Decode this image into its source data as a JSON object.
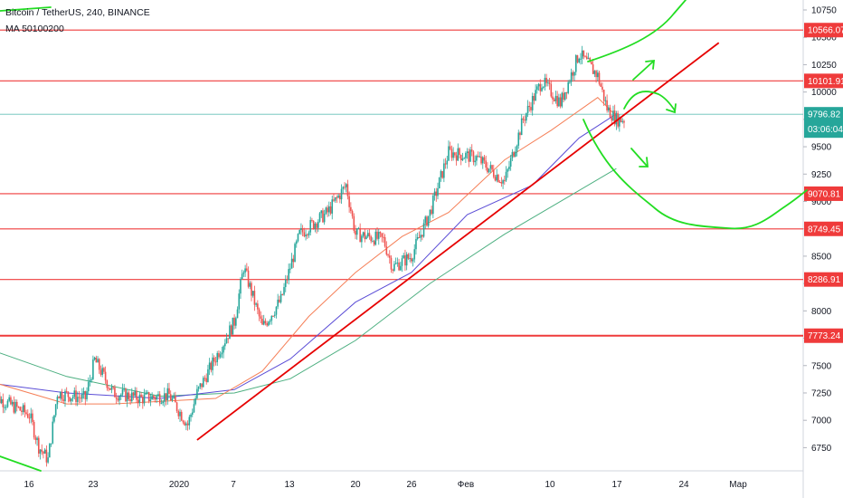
{
  "header": {
    "symbol": "Bitcoin / TetherUS, 240, BINANCE",
    "indicator": "MA 50100200"
  },
  "colors": {
    "up": "#26a69a",
    "down": "#ef5350",
    "ma50": "#f57f57",
    "ma100": "#5b4dd6",
    "ma200": "#4caf80",
    "level": "#ef3b3b",
    "trendline": "#e60000",
    "drawing": "#22dd22",
    "current": "#26a69a"
  },
  "x_axis_labels": [
    "16",
    "23",
    "2020",
    "7",
    "13",
    "20",
    "26",
    "Фев",
    "10",
    "17",
    "24",
    "Мар"
  ],
  "chart_data": {
    "type": "candlestick",
    "symbol": "BTCUSDT",
    "timeframe": "240",
    "exchange": "BINANCE",
    "y_ticks": [
      6750,
      7000,
      7250,
      7500,
      7750,
      8000,
      8250,
      8500,
      8750,
      9000,
      9250,
      9500,
      9750,
      10000,
      10250,
      10500,
      10750
    ],
    "ylim": [
      6650,
      10900
    ],
    "horizontal_levels": [
      10566.07,
      10101.91,
      9070.81,
      8749.45,
      8286.91,
      7773.24
    ],
    "current_price": 9796.82,
    "countdown": "03:06:04",
    "trendline": {
      "from": [
        "2020-01-03",
        6820
      ],
      "to": [
        "2020-02-28",
        10450
      ]
    },
    "anchor_closes": [
      [
        "2019-12-12",
        7230
      ],
      [
        "2019-12-16",
        7050
      ],
      [
        "2019-12-17",
        6760
      ],
      [
        "2019-12-18",
        6640
      ],
      [
        "2019-12-19",
        7250
      ],
      [
        "2019-12-22",
        7200
      ],
      [
        "2019-12-23",
        7550
      ],
      [
        "2019-12-25",
        7250
      ],
      [
        "2019-12-28",
        7200
      ],
      [
        "2019-12-31",
        7230
      ],
      [
        "2020-01-02",
        6960
      ],
      [
        "2020-01-03",
        7250
      ],
      [
        "2020-01-07",
        7900
      ],
      [
        "2020-01-08",
        8400
      ],
      [
        "2020-01-10",
        7850
      ],
      [
        "2020-01-12",
        8100
      ],
      [
        "2020-01-14",
        8700
      ],
      [
        "2020-01-17",
        8900
      ],
      [
        "2020-01-19",
        9150
      ],
      [
        "2020-01-20",
        8700
      ],
      [
        "2020-01-23",
        8650
      ],
      [
        "2020-01-24",
        8400
      ],
      [
        "2020-01-26",
        8500
      ],
      [
        "2020-01-28",
        8900
      ],
      [
        "2020-01-30",
        9450
      ],
      [
        "2020-02-02",
        9400
      ],
      [
        "2020-02-05",
        9180
      ],
      [
        "2020-02-07",
        9750
      ],
      [
        "2020-02-09",
        10100
      ],
      [
        "2020-02-11",
        9900
      ],
      [
        "2020-02-13",
        10350
      ],
      [
        "2020-02-15",
        10150
      ],
      [
        "2020-02-16",
        9850
      ],
      [
        "2020-02-17",
        9750
      ]
    ],
    "ma_series": {
      "ma50": [
        [
          "2019-12-10",
          7400
        ],
        [
          "2019-12-20",
          7150
        ],
        [
          "2019-12-25",
          7150
        ],
        [
          "2020-01-05",
          7200
        ],
        [
          "2020-01-10",
          7450
        ],
        [
          "2020-01-15",
          7950
        ],
        [
          "2020-01-20",
          8350
        ],
        [
          "2020-01-25",
          8680
        ],
        [
          "2020-01-30",
          8900
        ],
        [
          "2020-02-05",
          9380
        ],
        [
          "2020-02-10",
          9650
        ],
        [
          "2020-02-15",
          9950
        ],
        [
          "2020-02-17",
          9780
        ]
      ],
      "ma100": [
        [
          "2019-12-10",
          7360
        ],
        [
          "2019-12-20",
          7250
        ],
        [
          "2019-12-30",
          7200
        ],
        [
          "2020-01-07",
          7280
        ],
        [
          "2020-01-13",
          7560
        ],
        [
          "2020-01-20",
          8080
        ],
        [
          "2020-01-26",
          8350
        ],
        [
          "2020-02-01",
          8880
        ],
        [
          "2020-02-08",
          9150
        ],
        [
          "2020-02-13",
          9580
        ],
        [
          "2020-02-17",
          9800
        ]
      ],
      "ma200": [
        [
          "2019-12-10",
          7700
        ],
        [
          "2019-12-20",
          7400
        ],
        [
          "2019-12-30",
          7220
        ],
        [
          "2020-01-07",
          7250
        ],
        [
          "2020-01-13",
          7380
        ],
        [
          "2020-01-20",
          7730
        ],
        [
          "2020-01-28",
          8250
        ],
        [
          "2020-02-05",
          8700
        ],
        [
          "2020-02-12",
          9050
        ],
        [
          "2020-02-17",
          9300
        ]
      ]
    }
  }
}
